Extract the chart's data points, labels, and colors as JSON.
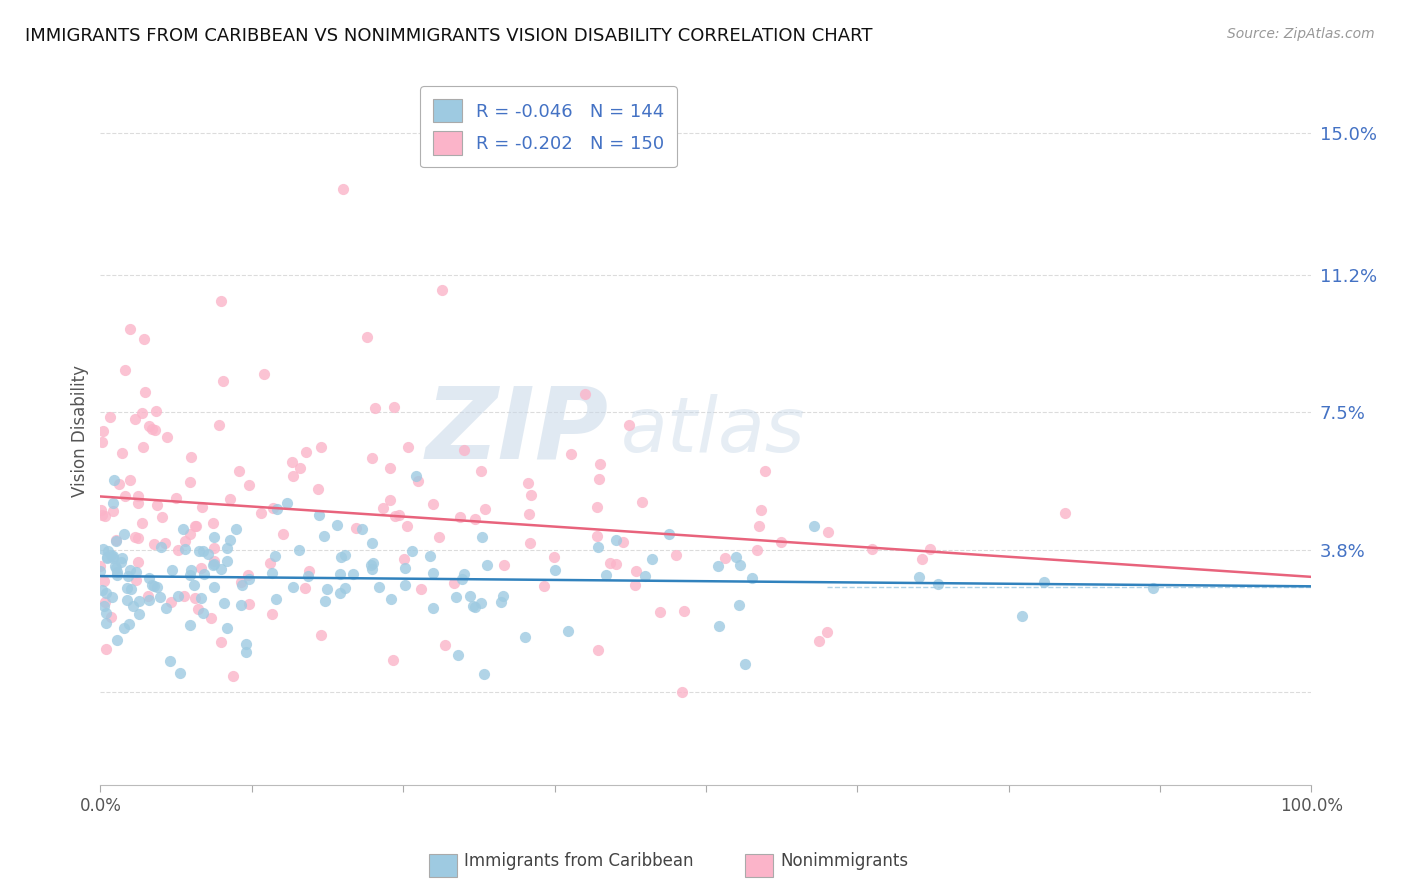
{
  "title": "IMMIGRANTS FROM CARIBBEAN VS NONIMMIGRANTS VISION DISABILITY CORRELATION CHART",
  "source": "Source: ZipAtlas.com",
  "ylabel": "Vision Disability",
  "watermark_zip": "ZIP",
  "watermark_atlas": "atlas",
  "legend_labels": [
    "Immigrants from Caribbean",
    "Nonimmigrants"
  ],
  "blue_R": -0.046,
  "blue_N": 144,
  "pink_R": -0.202,
  "pink_N": 150,
  "blue_scatter_color": "#9ecae1",
  "pink_scatter_color": "#fbb4c9",
  "blue_line_color": "#3182bd",
  "pink_line_color": "#e8637c",
  "dash_line_color": "#9ecae1",
  "ytick_labels": [
    "",
    "3.8%",
    "7.5%",
    "11.2%",
    "15.0%"
  ],
  "ytick_values": [
    0.0,
    3.8,
    7.5,
    11.2,
    15.0
  ],
  "xlim": [
    0,
    100
  ],
  "ylim": [
    -2.5,
    16.5
  ],
  "background_color": "#ffffff",
  "grid_color": "#d9d9d9",
  "title_fontsize": 13,
  "ytick_color": "#4472c4",
  "legend_text_color": "#4472c4",
  "seed": 99
}
